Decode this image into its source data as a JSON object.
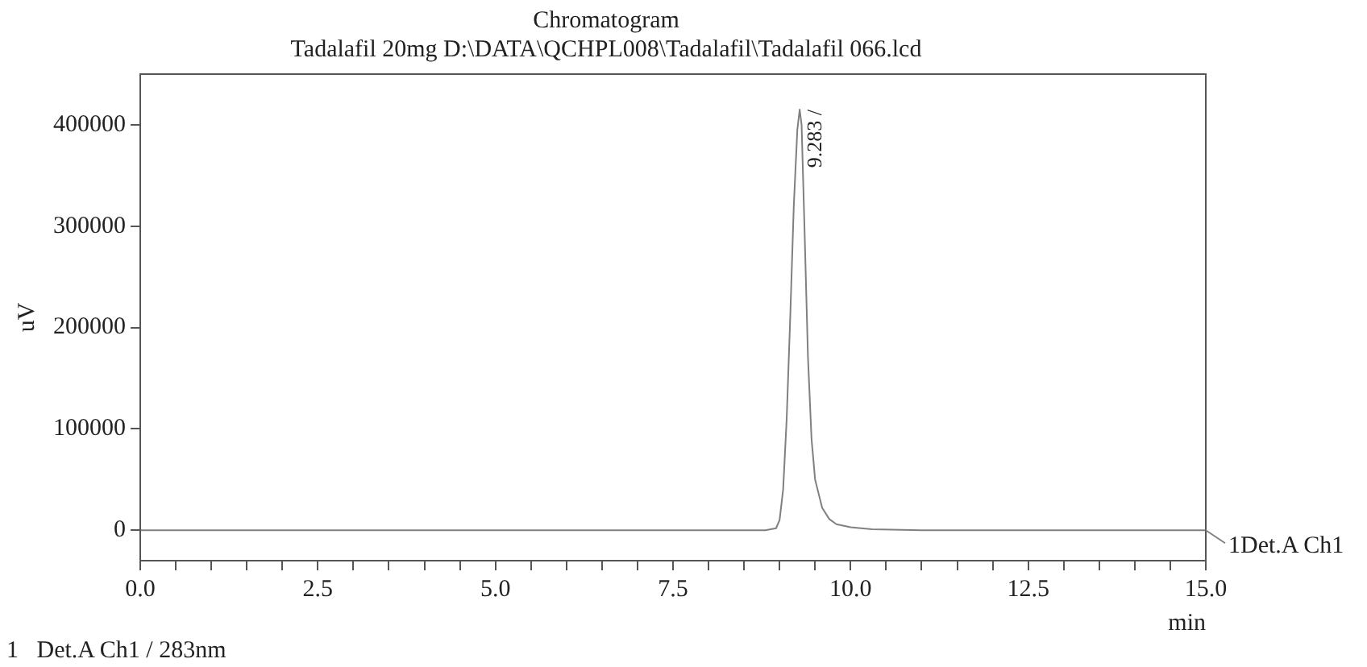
{
  "chart_data": {
    "type": "line",
    "title": "Chromatogram",
    "subtitle": "Tadalafil 20mg D:\\DATA\\QCHPL008\\Tadalafil\\Tadalafil 066.lcd",
    "xlabel": "min",
    "ylabel": "uV",
    "x": [
      0,
      2,
      4,
      6,
      8,
      8.8,
      8.95,
      9.0,
      9.05,
      9.1,
      9.15,
      9.2,
      9.25,
      9.283,
      9.31,
      9.35,
      9.4,
      9.45,
      9.5,
      9.6,
      9.7,
      9.8,
      10.0,
      10.3,
      11,
      13,
      15
    ],
    "series": [
      {
        "name": "1Det.A Ch1",
        "color": "#808080",
        "values": [
          0,
          0,
          0,
          0,
          0,
          0,
          2000,
          10000,
          40000,
          110000,
          210000,
          320000,
          395000,
          415000,
          400000,
          300000,
          170000,
          90000,
          50000,
          22000,
          11000,
          6000,
          3000,
          1000,
          0,
          0,
          0
        ]
      }
    ],
    "xlim": [
      0,
      15
    ],
    "ylim": [
      -30000,
      450000
    ],
    "xticks": [
      {
        "value": 0,
        "label": "0.0"
      },
      {
        "value": 0.5,
        "label": null
      },
      {
        "value": 1,
        "label": null
      },
      {
        "value": 1.5,
        "label": null
      },
      {
        "value": 2,
        "label": null
      },
      {
        "value": 2.5,
        "label": "2.5"
      },
      {
        "value": 3,
        "label": null
      },
      {
        "value": 3.5,
        "label": null
      },
      {
        "value": 4,
        "label": null
      },
      {
        "value": 4.5,
        "label": null
      },
      {
        "value": 5,
        "label": "5.0"
      },
      {
        "value": 5.5,
        "label": null
      },
      {
        "value": 6,
        "label": null
      },
      {
        "value": 6.5,
        "label": null
      },
      {
        "value": 7,
        "label": null
      },
      {
        "value": 7.5,
        "label": "7.5"
      },
      {
        "value": 8,
        "label": null
      },
      {
        "value": 8.5,
        "label": null
      },
      {
        "value": 9,
        "label": null
      },
      {
        "value": 9.5,
        "label": null
      },
      {
        "value": 10,
        "label": "10.0"
      },
      {
        "value": 10.5,
        "label": null
      },
      {
        "value": 11,
        "label": null
      },
      {
        "value": 11.5,
        "label": null
      },
      {
        "value": 12,
        "label": null
      },
      {
        "value": 12.5,
        "label": "12.5"
      },
      {
        "value": 13,
        "label": null
      },
      {
        "value": 13.5,
        "label": null
      },
      {
        "value": 14,
        "label": null
      },
      {
        "value": 14.5,
        "label": null
      },
      {
        "value": 15,
        "label": "15.0"
      }
    ],
    "yticks": [
      0,
      100000,
      200000,
      300000,
      400000
    ],
    "annotations": [
      {
        "text": "9.283 /",
        "x": 9.283,
        "y": 415000
      },
      "1   Det.A Ch1 / 283nm"
    ],
    "grid": false,
    "legend": "right",
    "marker": "none",
    "line_style": "solid"
  }
}
